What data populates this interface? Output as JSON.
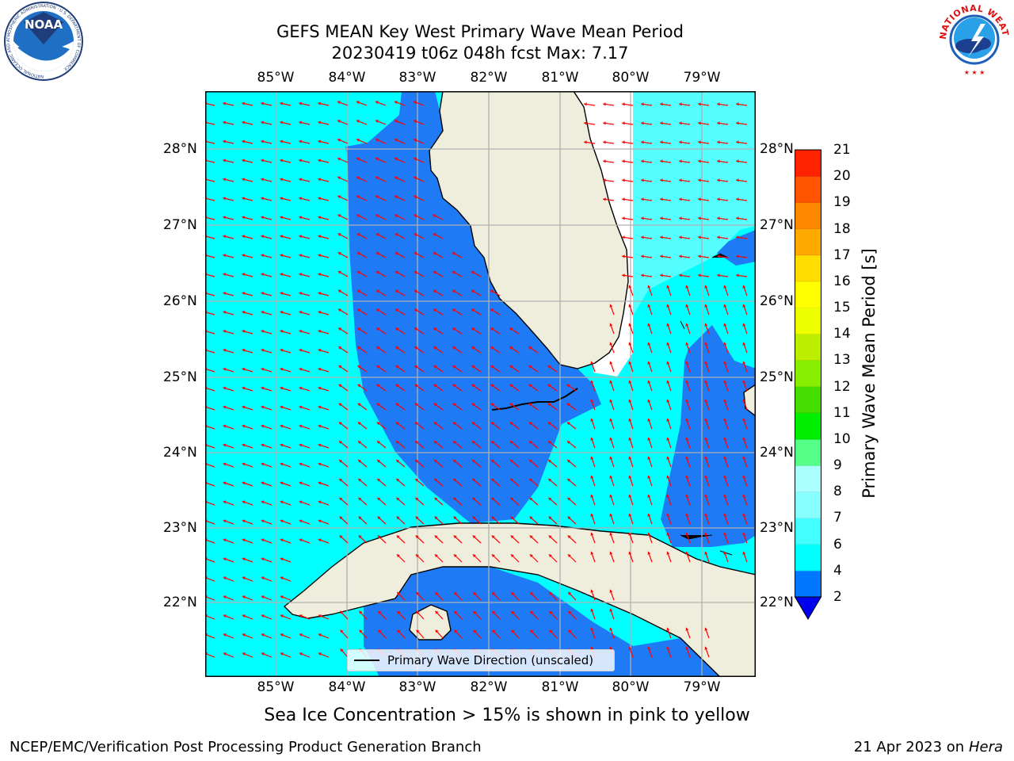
{
  "title_line1": "GEFS MEAN Key West Primary Wave Mean Period",
  "title_line2": "20230419 t06z 048h fcst   Max: 7.17",
  "lon_labels": [
    "85°W",
    "84°W",
    "83°W",
    "82°W",
    "81°W",
    "80°W",
    "79°W"
  ],
  "lat_labels": [
    "28°N",
    "27°N",
    "26°N",
    "25°N",
    "24°N",
    "23°N",
    "22°N"
  ],
  "legend_label": "Primary Wave Direction (unscaled)",
  "colorbar": {
    "title": "Primary Wave Mean Period [s]",
    "ticks": [
      "2",
      "4",
      "6",
      "7",
      "8",
      "9",
      "10",
      "11",
      "12",
      "13",
      "14",
      "15",
      "16",
      "17",
      "18",
      "19",
      "20",
      "21"
    ],
    "colors": [
      "#0077ff",
      "#00ffff",
      "#44ffff",
      "#88ffff",
      "#aaffff",
      "#55ff88",
      "#00ee00",
      "#44dd00",
      "#88ee00",
      "#bbee00",
      "#eeff00",
      "#ffff00",
      "#ffdd00",
      "#ffaa00",
      "#ff8800",
      "#ff5500",
      "#ff2200"
    ],
    "underflow_color": "#0000ee"
  },
  "bottom_caption": "Sea Ice Concentration > 15% is shown in pink to yellow",
  "footer_left": "NCEP/EMC/Verification Post Processing Product Generation Branch",
  "footer_date": "21 Apr 2023 on ",
  "footer_machine": "Hera",
  "noaa_logo_text": "NOAA",
  "noaa_ring_text": "NATIONAL OCEANIC AND ATMOSPHERIC ADMINISTRATION · U.S. DEPARTMENT OF COMMERCE",
  "nws_ring_text": "NATIONAL WEATHER SERVICE",
  "map_colors": {
    "land": "#efeedc",
    "ocean_dark": "#1e7bf5",
    "ocean_cyan": "#00ffff",
    "ocean_light": "#55ffff",
    "arrow": "#ff0000",
    "grid": "#b0b0b0"
  }
}
